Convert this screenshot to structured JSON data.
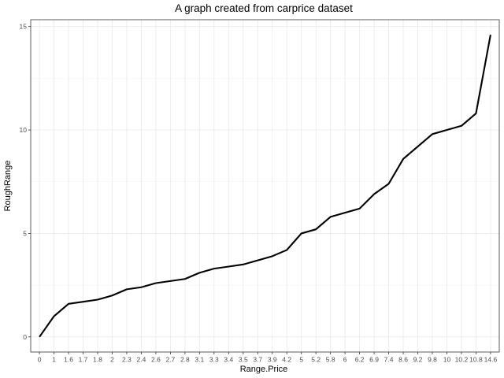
{
  "chart_data": {
    "type": "line",
    "title": "A graph created from carprice dataset",
    "xlabel": "Range.Price",
    "ylabel": "RoughRange",
    "categories": [
      "0",
      "1",
      "1.6",
      "1.7",
      "1.8",
      "2",
      "2.3",
      "2.4",
      "2.6",
      "2.7",
      "2.8",
      "3.1",
      "3.3",
      "3.4",
      "3.5",
      "3.7",
      "3.9",
      "4.2",
      "5",
      "5.2",
      "5.8",
      "6",
      "6.2",
      "6.9",
      "7.4",
      "8.6",
      "9.2",
      "9.8",
      "10",
      "10.2",
      "10.8",
      "14.6"
    ],
    "values": [
      0,
      1,
      1.6,
      1.7,
      1.8,
      2,
      2.3,
      2.4,
      2.6,
      2.7,
      2.8,
      3.1,
      3.3,
      3.4,
      3.5,
      3.7,
      3.9,
      4.2,
      5,
      5.2,
      5.8,
      6,
      6.2,
      6.9,
      7.4,
      8.6,
      9.2,
      9.8,
      10,
      10.2,
      10.8,
      14.6
    ],
    "ylim": [
      -0.73,
      15.33
    ],
    "yticks": [
      0,
      5,
      10,
      15
    ],
    "grid": true,
    "legend": "none",
    "line_color": "#000000"
  }
}
